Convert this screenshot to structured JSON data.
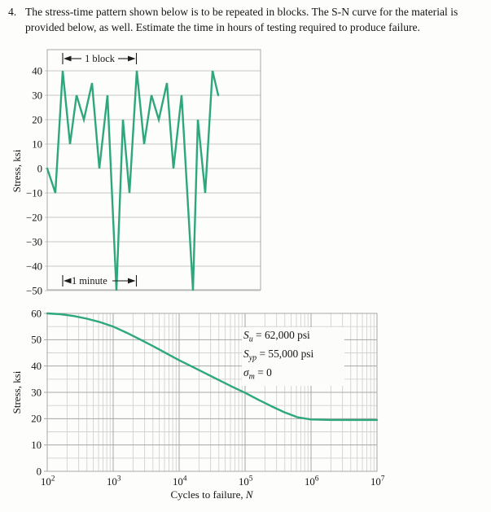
{
  "problem": {
    "number": "4.",
    "line1": "The stress-time pattern shown below is to be repeated in blocks. The S-N curve for the material is",
    "line2": "provided below, as well. Estimate the time in hours of testing required to produce failure."
  },
  "colors": {
    "curve_green": "#2ea87b",
    "grid_major": "#a6a6a4",
    "grid_minor": "#d2d2d0",
    "grid_light": "#c6c6c4",
    "frame": "#a8a8a6",
    "text": "#151515"
  },
  "chart_data": [
    {
      "type": "line",
      "title": "stress-time pattern",
      "ylabel": "Stress, ksi",
      "ylim": [
        -50,
        48
      ],
      "yticks": [
        40,
        30,
        20,
        10,
        0,
        -10,
        -20,
        -30,
        -40,
        -50
      ],
      "grid": "horizontal-only",
      "block_label": "1 block",
      "minute_label": "1 minute",
      "block_peak_valley_sequence": [
        40,
        10,
        30,
        20,
        35,
        0,
        30,
        -50,
        20,
        -10
      ],
      "cycles_per_block": 5,
      "points_time_stress": [
        [
          58,
          0
        ],
        [
          68,
          -10
        ],
        [
          77,
          40
        ],
        [
          86,
          10
        ],
        [
          94,
          30
        ],
        [
          103,
          20
        ],
        [
          113,
          35
        ],
        [
          122,
          0
        ],
        [
          132,
          30
        ],
        [
          143,
          -50
        ],
        [
          151,
          20
        ],
        [
          159,
          -10
        ],
        [
          168,
          40
        ],
        [
          177,
          10
        ],
        [
          186,
          30
        ],
        [
          195,
          20
        ],
        [
          205,
          35
        ],
        [
          213,
          0
        ],
        [
          223,
          30
        ],
        [
          237,
          -50
        ],
        [
          243,
          20
        ],
        [
          252,
          -10
        ],
        [
          261,
          40
        ],
        [
          268,
          30
        ]
      ]
    },
    {
      "type": "line",
      "title": "S-N curve",
      "xlabel": "Cycles to failure,",
      "xlabel_var": "N",
      "ylabel": "Stress, ksi",
      "xscale": "log",
      "xlim_log": [
        2,
        7
      ],
      "ylim": [
        0,
        60
      ],
      "yticks": [
        0,
        10,
        20,
        30,
        40,
        50,
        60
      ],
      "xtick_base": "10",
      "xtick_exponents": [
        2,
        3,
        4,
        5,
        6,
        7
      ],
      "grid": "log graph paper",
      "endurance_limit_ksi": 19.5,
      "points_logN_stress": [
        [
          2.0,
          60
        ],
        [
          2.2,
          59.7
        ],
        [
          2.4,
          59.0
        ],
        [
          2.6,
          58.0
        ],
        [
          2.8,
          56.7
        ],
        [
          3.0,
          55.0
        ],
        [
          3.2,
          52.7
        ],
        [
          3.4,
          50.2
        ],
        [
          3.6,
          47.6
        ],
        [
          3.8,
          44.9
        ],
        [
          4.0,
          42.2
        ],
        [
          4.2,
          39.7
        ],
        [
          4.4,
          37.2
        ],
        [
          4.6,
          34.7
        ],
        [
          4.8,
          32.2
        ],
        [
          5.0,
          29.8
        ],
        [
          5.2,
          27.2
        ],
        [
          5.4,
          24.7
        ],
        [
          5.6,
          22.4
        ],
        [
          5.8,
          20.5
        ],
        [
          6.0,
          19.7
        ],
        [
          6.3,
          19.5
        ],
        [
          7.0,
          19.5
        ]
      ],
      "annotations": [
        {
          "sym": "S",
          "sub": "u",
          "rest": " = 62,000 psi"
        },
        {
          "sym": "S",
          "sub": "yp",
          "rest": " = 55,000 psi"
        },
        {
          "sym": "σ",
          "sub": "m",
          "rest": " = 0"
        }
      ]
    }
  ]
}
